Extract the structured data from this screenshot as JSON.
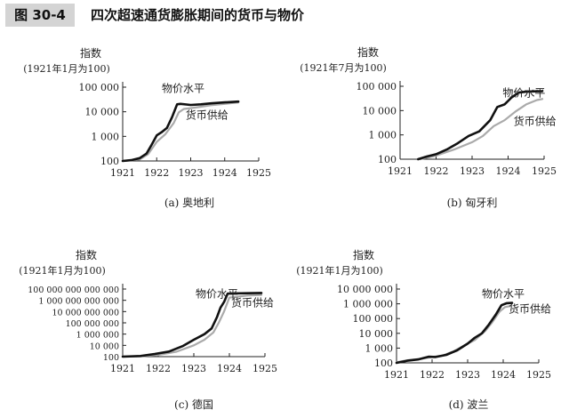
{
  "figure": {
    "number": "图 30-4",
    "title": "四次超速通货膨胀期间的货币与物价"
  },
  "chart_data": [
    {
      "type": "line",
      "caption": "(a) 奥地利",
      "ylabel": "指数",
      "ylabel_note": "(1921年1月为100)",
      "scale": "log",
      "xlim": [
        1921,
        1925
      ],
      "ylim": [
        100,
        100000
      ],
      "xticks": [
        "1921",
        "1922",
        "1923",
        "1924",
        "1925"
      ],
      "yticks": [
        {
          "value": 100,
          "label": "100"
        },
        {
          "value": 1000,
          "label": "1 000"
        },
        {
          "value": 10000,
          "label": "10 000"
        },
        {
          "value": 100000,
          "label": "100 000"
        }
      ],
      "series": [
        {
          "name": "物价水平",
          "label_at": [
            1922.15,
            62000
          ],
          "color": "#111111",
          "points": [
            [
              1921.0,
              100
            ],
            [
              1921.25,
              108
            ],
            [
              1921.5,
              130
            ],
            [
              1921.7,
              200
            ],
            [
              1921.85,
              450
            ],
            [
              1922.0,
              1100
            ],
            [
              1922.15,
              1500
            ],
            [
              1922.3,
              2200
            ],
            [
              1922.45,
              6000
            ],
            [
              1922.6,
              20000
            ],
            [
              1922.7,
              21000
            ],
            [
              1923.0,
              19000
            ],
            [
              1923.3,
              20000
            ],
            [
              1923.6,
              22000
            ],
            [
              1924.0,
              24000
            ],
            [
              1924.4,
              26000
            ]
          ]
        },
        {
          "name": "货币供给",
          "label_at": [
            1922.85,
            5200
          ],
          "color": "#aaaaaa",
          "points": [
            [
              1921.0,
              100
            ],
            [
              1921.5,
              115
            ],
            [
              1921.75,
              190
            ],
            [
              1922.0,
              600
            ],
            [
              1922.25,
              1200
            ],
            [
              1922.5,
              3500
            ],
            [
              1922.65,
              9500
            ],
            [
              1922.8,
              13000
            ],
            [
              1923.0,
              14000
            ],
            [
              1923.3,
              16000
            ],
            [
              1923.6,
              18500
            ],
            [
              1924.0,
              21000
            ],
            [
              1924.4,
              24000
            ]
          ]
        }
      ]
    },
    {
      "type": "line",
      "caption": "(b) 匈牙利",
      "ylabel": "指数",
      "ylabel_note": "(1921年7月为100)",
      "scale": "log",
      "xlim": [
        1921,
        1925
      ],
      "ylim": [
        100,
        100000
      ],
      "xticks": [
        "1921",
        "1922",
        "1923",
        "1924",
        "1925"
      ],
      "yticks": [
        {
          "value": 100,
          "label": "100"
        },
        {
          "value": 1000,
          "label": "1 000"
        },
        {
          "value": 10000,
          "label": "10 000"
        },
        {
          "value": 100000,
          "label": "100 000"
        }
      ],
      "series": [
        {
          "name": "物价水平",
          "label_at": [
            1923.85,
            38000
          ],
          "color": "#111111",
          "points": [
            [
              1921.5,
              100
            ],
            [
              1921.75,
              130
            ],
            [
              1922.0,
              160
            ],
            [
              1922.3,
              250
            ],
            [
              1922.6,
              450
            ],
            [
              1922.9,
              900
            ],
            [
              1923.2,
              1400
            ],
            [
              1923.5,
              4000
            ],
            [
              1923.7,
              14000
            ],
            [
              1923.9,
              18000
            ],
            [
              1924.1,
              35000
            ],
            [
              1924.3,
              55000
            ],
            [
              1924.5,
              60000
            ],
            [
              1924.75,
              62000
            ],
            [
              1924.95,
              63000
            ]
          ]
        },
        {
          "name": "货币供给",
          "label_at": [
            1924.15,
            2600
          ],
          "color": "#aaaaaa",
          "points": [
            [
              1921.55,
              100
            ],
            [
              1922.0,
              140
            ],
            [
              1922.5,
              250
            ],
            [
              1923.0,
              500
            ],
            [
              1923.3,
              900
            ],
            [
              1923.6,
              2300
            ],
            [
              1923.9,
              4000
            ],
            [
              1924.2,
              9000
            ],
            [
              1924.5,
              18000
            ],
            [
              1924.8,
              27000
            ],
            [
              1924.95,
              30000
            ]
          ]
        }
      ]
    },
    {
      "type": "line",
      "caption": "(c) 德国",
      "ylabel": "指数",
      "ylabel_note": "(1921年1月为100)",
      "scale": "log",
      "xlim": [
        1921,
        1925
      ],
      "ylim": [
        100,
        100000000000000
      ],
      "xticks": [
        "1921",
        "1922",
        "1923",
        "1924",
        "1925"
      ],
      "yticks": [
        {
          "value": 100,
          "label": "100"
        },
        {
          "value": 10000,
          "label": "10 000"
        },
        {
          "value": 1000000,
          "label": "1 000 000"
        },
        {
          "value": 100000000,
          "label": "100 000 000"
        },
        {
          "value": 10000000000,
          "label": "10 000 000 000"
        },
        {
          "value": 1000000000000,
          "label": "1 000 000 000 000"
        },
        {
          "value": 100000000000000,
          "label": "100 000 000 000 000"
        }
      ],
      "series": [
        {
          "name": "物价水平",
          "label_at": [
            1923.05,
            3000000000000
          ],
          "color": "#111111",
          "points": [
            [
              1921.0,
              100
            ],
            [
              1921.5,
              130
            ],
            [
              1921.9,
              300
            ],
            [
              1922.3,
              800
            ],
            [
              1922.7,
              8000
            ],
            [
              1923.0,
              100000
            ],
            [
              1923.3,
              1000000
            ],
            [
              1923.5,
              10000000
            ],
            [
              1923.65,
              1000000000
            ],
            [
              1923.75,
              50000000000
            ],
            [
              1923.85,
              500000000000
            ],
            [
              1923.95,
              15000000000000
            ],
            [
              1924.0,
              16000000000000
            ],
            [
              1924.5,
              18000000000000
            ],
            [
              1924.9,
              20000000000000
            ]
          ]
        },
        {
          "name": "货币供给",
          "label_at": [
            1924.05,
            80000000000
          ],
          "color": "#aaaaaa",
          "points": [
            [
              1921.0,
              100
            ],
            [
              1921.5,
              120
            ],
            [
              1922.0,
              200
            ],
            [
              1922.5,
              700
            ],
            [
              1923.0,
              10000
            ],
            [
              1923.3,
              100000
            ],
            [
              1923.55,
              2000000
            ],
            [
              1923.7,
              100000000
            ],
            [
              1923.85,
              10000000000
            ],
            [
              1924.0,
              3000000000000
            ],
            [
              1924.5,
              7000000000000
            ],
            [
              1924.9,
              9000000000000
            ]
          ]
        }
      ]
    },
    {
      "type": "line",
      "caption": "(d) 波兰",
      "ylabel": "指数",
      "ylabel_note": "(1921年1月为100)",
      "scale": "log",
      "xlim": [
        1921,
        1925
      ],
      "ylim": [
        100,
        10000000
      ],
      "xticks": [
        "1921",
        "1922",
        "1923",
        "1924",
        "1925"
      ],
      "yticks": [
        {
          "value": 100,
          "label": "100"
        },
        {
          "value": 1000,
          "label": "1 000"
        },
        {
          "value": 10000,
          "label": "10 000"
        },
        {
          "value": 100000,
          "label": "100 000"
        },
        {
          "value": 1000000,
          "label": "1 000 000"
        },
        {
          "value": 10000000,
          "label": "10 000 000"
        }
      ],
      "series": [
        {
          "name": "物价水平",
          "label_at": [
            1923.4,
            2600000
          ],
          "color": "#111111",
          "points": [
            [
              1921.0,
              100
            ],
            [
              1921.3,
              140
            ],
            [
              1921.6,
              170
            ],
            [
              1921.9,
              260
            ],
            [
              1922.1,
              250
            ],
            [
              1922.4,
              350
            ],
            [
              1922.7,
              700
            ],
            [
              1923.0,
              2000
            ],
            [
              1923.2,
              5000
            ],
            [
              1923.4,
              10000
            ],
            [
              1923.6,
              40000
            ],
            [
              1923.8,
              200000
            ],
            [
              1923.95,
              800000
            ],
            [
              1924.1,
              1100000
            ],
            [
              1924.25,
              1150000
            ]
          ]
        },
        {
          "name": "货币供给",
          "label_at": [
            1924.15,
            260000
          ],
          "color": "#aaaaaa",
          "points": [
            [
              1921.0,
              110
            ],
            [
              1921.3,
              150
            ],
            [
              1921.7,
              190
            ],
            [
              1922.0,
              250
            ],
            [
              1922.3,
              310
            ],
            [
              1922.6,
              600
            ],
            [
              1922.9,
              1500
            ],
            [
              1923.2,
              3500
            ],
            [
              1923.5,
              15000
            ],
            [
              1923.7,
              60000
            ],
            [
              1923.9,
              300000
            ],
            [
              1924.05,
              600000
            ],
            [
              1924.2,
              700000
            ]
          ]
        }
      ]
    }
  ]
}
